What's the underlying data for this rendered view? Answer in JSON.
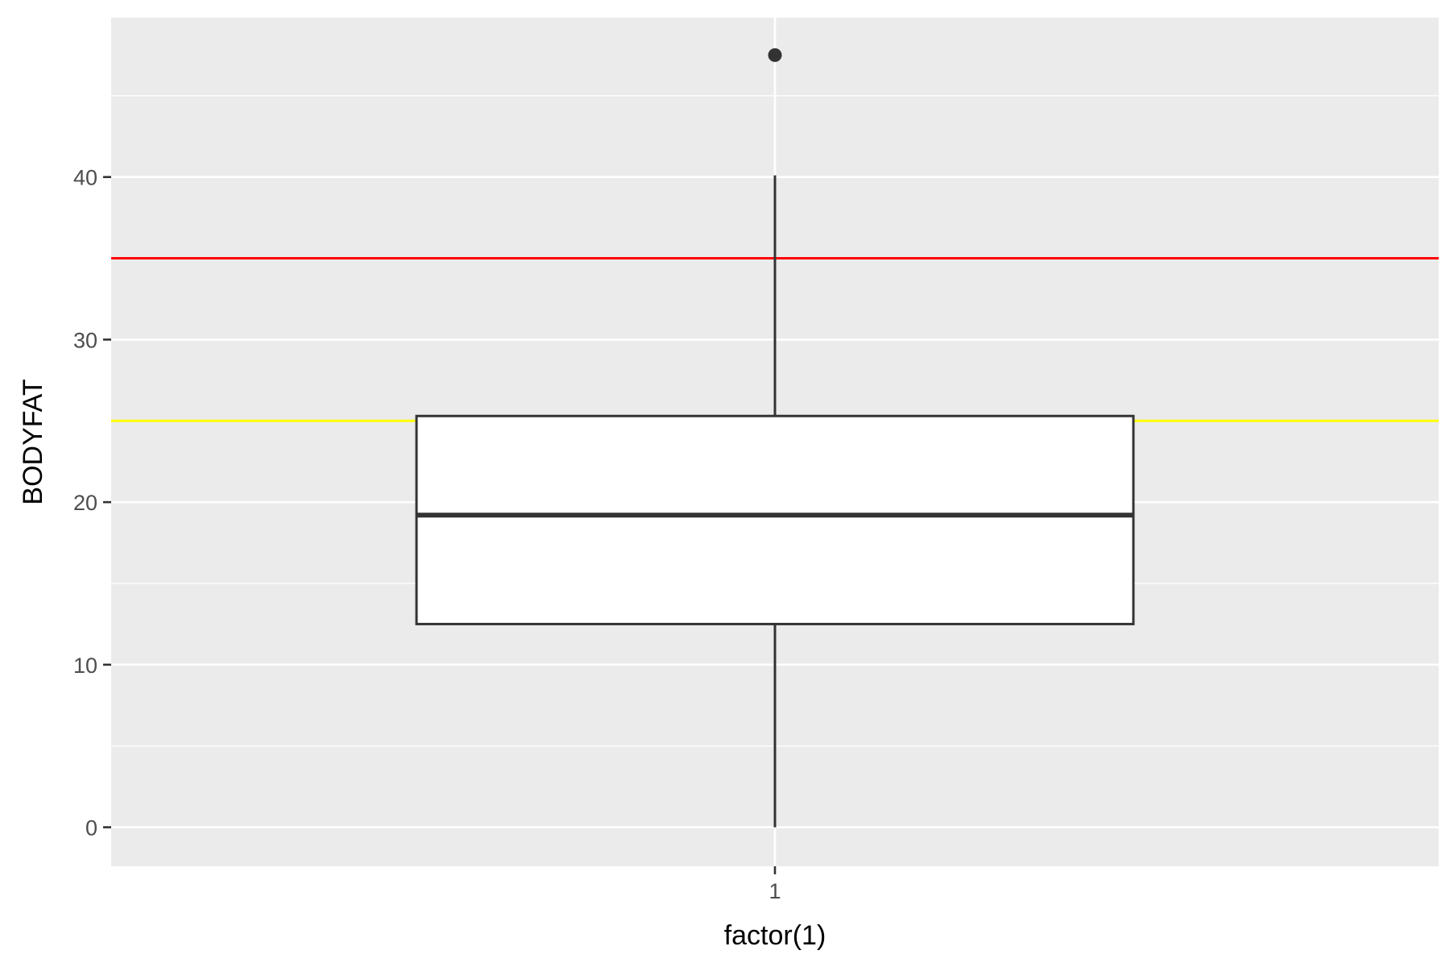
{
  "chart_data": {
    "type": "boxplot",
    "title": "",
    "xlabel": "factor(1)",
    "ylabel": "BODYFAT",
    "categories": [
      "1"
    ],
    "ylim": [
      -2.4,
      49.8
    ],
    "yticks": [
      0,
      10,
      20,
      30,
      40
    ],
    "ytick_labels": [
      "0",
      "10",
      "20",
      "30",
      "40"
    ],
    "minor_yticks": [
      5,
      15,
      25,
      35,
      45
    ],
    "grid": true,
    "legend": "none",
    "boxes": [
      {
        "category": "1",
        "whisker_low": 0,
        "q1": 12.5,
        "median": 19.2,
        "q3": 25.3,
        "whisker_high": 40.1,
        "outliers": [
          47.5
        ]
      }
    ],
    "reference_lines": [
      {
        "y": 35,
        "color": "#ff0000"
      },
      {
        "y": 25,
        "color": "#ffff00"
      }
    ],
    "colors": {
      "panel": "#ebebeb",
      "grid": "#ffffff",
      "box_fill": "#ffffff",
      "box_line": "#333333",
      "tick_text": "#4d4d4d",
      "axis_title": "#000000"
    }
  }
}
